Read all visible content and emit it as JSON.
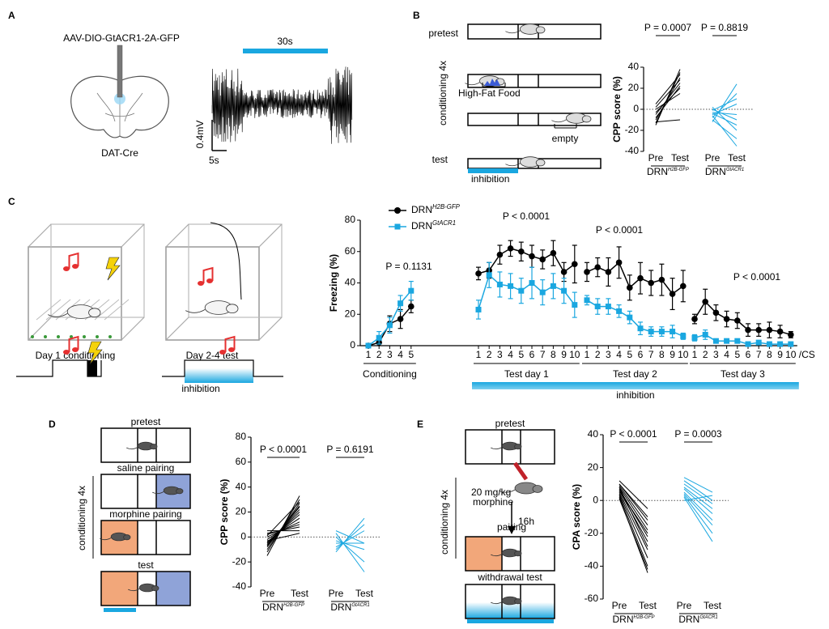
{
  "panels": {
    "labels": [
      "A",
      "B",
      "C",
      "D",
      "E"
    ],
    "A": {
      "virus": "AAV-DIO-GtACR1-2A-GFP",
      "mouse_line": "DAT-Cre",
      "duration": "30s",
      "scale_v": "0.4mV",
      "scale_t": "5s"
    },
    "B": {
      "pretest": "pretest",
      "conditioning": "conditioning 4x",
      "food": "High-Fat Food",
      "empty": "empty",
      "test": "test",
      "inhibition": "inhibition"
    },
    "C": {
      "day1": "Day 1 conditioning",
      "day2": "Day 2-4 test",
      "inhibition": "inhibition"
    },
    "D": {
      "pretest": "pretest",
      "saline": "saline pairing",
      "morphine": "morphine pairing",
      "conditioning": "conditioning 4x",
      "test": "test"
    },
    "E": {
      "pretest": "pretest",
      "dose": "20 mg/kg",
      "drug": "morphine",
      "delay": "16h",
      "conditioning": "conditioning 4x",
      "pairing": "pairing",
      "test": "withdrawal test"
    }
  },
  "chart_data": [
    {
      "type": "paired",
      "ylabel": "CPP score (%)",
      "ylim": [
        -40,
        40
      ],
      "yticks": [
        -40,
        -20,
        0,
        20,
        40
      ],
      "xlabels": [
        "Pre",
        "Test"
      ],
      "annotations": [
        "P = 0.0007",
        "P = 0.8819"
      ],
      "series": [
        {
          "name": {
            "base": "DRN",
            "sup": "H2B-GFP"
          },
          "color": "#000000",
          "pre": [
            -15,
            -13,
            -10,
            -5,
            -3,
            0,
            2,
            5,
            -12,
            -8
          ],
          "test": [
            38,
            35,
            30,
            25,
            20,
            15,
            28,
            33,
            -10,
            22
          ]
        },
        {
          "name": {
            "base": "DRN",
            "sup": "GtACR1"
          },
          "color": "#1aa7e0",
          "pre": [
            -12,
            -8,
            -5,
            -3,
            0,
            2,
            -10,
            -6,
            -1,
            -4
          ],
          "test": [
            24,
            15,
            5,
            -5,
            -10,
            -20,
            -28,
            -35,
            10,
            -15
          ]
        }
      ]
    },
    {
      "type": "line",
      "ylabel": "Freezing (%)",
      "ylim": [
        0,
        80
      ],
      "yticks": [
        0,
        20,
        40,
        60,
        80
      ],
      "xunit": "/CS",
      "inhibition_label": "inhibition",
      "sections": [
        {
          "label": "Conditioning",
          "categories": [
            1,
            2,
            3,
            4,
            5
          ]
        },
        {
          "label": "Test day 1",
          "categories": [
            1,
            2,
            3,
            4,
            5,
            6,
            7,
            8,
            9,
            10
          ]
        },
        {
          "label": "Test day 2",
          "categories": [
            1,
            2,
            3,
            4,
            5,
            6,
            7,
            8,
            9,
            10
          ]
        },
        {
          "label": "Test day 3",
          "categories": [
            1,
            2,
            3,
            4,
            5,
            6,
            7,
            8,
            9,
            10
          ]
        }
      ],
      "annotations": [
        "P = 0.1131",
        "P < 0.0001",
        "P < 0.0001",
        "P < 0.0001"
      ],
      "series": [
        {
          "name": {
            "base": "DRN",
            "sup": "H2B-GFP"
          },
          "color": "#000000",
          "marker": "circle",
          "values": [
            [
              0,
              2,
              14,
              17,
              25
            ],
            [
              46,
              48,
              58,
              62,
              60,
              57,
              55,
              59,
              47,
              52
            ],
            [
              47,
              50,
              47,
              53,
              37,
              43,
              40,
              42,
              33,
              38
            ],
            [
              17,
              28,
              21,
              17,
              16,
              10,
              10,
              10,
              9,
              7
            ]
          ],
          "errors": [
            [
              0,
              1,
              5,
              6,
              4
            ],
            [
              4,
              5,
              6,
              5,
              6,
              7,
              6,
              8,
              6,
              12
            ],
            [
              6,
              6,
              9,
              10,
              8,
              10,
              8,
              10,
              10,
              10
            ],
            [
              3,
              8,
              5,
              5,
              5,
              4,
              4,
              5,
              4,
              2
            ]
          ]
        },
        {
          "name": {
            "base": "DRN",
            "sup": "GtACR1"
          },
          "color": "#1aa7e0",
          "marker": "square",
          "values": [
            [
              0,
              5,
              13,
              27,
              35
            ],
            [
              23,
              45,
              39,
              38,
              35,
              40,
              34,
              38,
              35,
              26
            ],
            [
              29,
              25,
              25,
              22,
              18,
              11,
              9,
              9,
              9,
              6
            ],
            [
              5,
              7,
              3,
              3,
              3,
              1,
              2,
              1,
              1,
              1
            ]
          ],
          "errors": [
            [
              0,
              4,
              5,
              5,
              6
            ],
            [
              6,
              8,
              8,
              8,
              8,
              10,
              8,
              8,
              8,
              8
            ],
            [
              3,
              5,
              5,
              4,
              4,
              4,
              3,
              3,
              4,
              2
            ],
            [
              2,
              3,
              1,
              1,
              1,
              1,
              1,
              1,
              1,
              1
            ]
          ]
        }
      ]
    },
    {
      "type": "paired",
      "ylabel": "CPP score (%)",
      "ylim": [
        -40,
        80
      ],
      "yticks": [
        -40,
        -20,
        0,
        20,
        40,
        60,
        80
      ],
      "xlabels": [
        "Pre",
        "Test"
      ],
      "annotations": [
        "P < 0.0001",
        "P = 0.6191"
      ],
      "series": [
        {
          "name": {
            "base": "DRN",
            "sup": "H2B-GFP"
          },
          "color": "#000000",
          "pre": [
            -15,
            -12,
            -10,
            -8,
            -6,
            -5,
            -4,
            -2,
            0,
            2,
            3,
            5,
            -3,
            -7,
            1
          ],
          "test": [
            33,
            30,
            27,
            25,
            22,
            20,
            18,
            15,
            12,
            10,
            8,
            5,
            3,
            24,
            28
          ]
        },
        {
          "name": {
            "base": "DRN",
            "sup": "GtACR1"
          },
          "color": "#1aa7e0",
          "pre": [
            -12,
            -10,
            -8,
            -5,
            -3,
            0,
            3,
            5
          ],
          "test": [
            15,
            10,
            5,
            -5,
            -10,
            -20,
            -28,
            -5
          ]
        }
      ]
    },
    {
      "type": "paired",
      "ylabel": "CPA score (%)",
      "ylim": [
        -60,
        40
      ],
      "yticks": [
        -60,
        -40,
        -20,
        0,
        20,
        40
      ],
      "xlabels": [
        "Pre",
        "Test"
      ],
      "annotations": [
        "P < 0.0001",
        "P = 0.0003"
      ],
      "series": [
        {
          "name": {
            "base": "DRN",
            "sup": "H2B-GFP"
          },
          "color": "#000000",
          "pre": [
            12,
            10,
            9,
            8,
            7,
            6,
            5,
            4,
            3,
            2,
            1,
            10,
            8,
            6
          ],
          "test": [
            -5,
            -10,
            -15,
            -18,
            -22,
            -25,
            -30,
            -35,
            -40,
            -44,
            -42,
            -12,
            -28,
            -20
          ]
        },
        {
          "name": {
            "base": "DRN",
            "sup": "GtACR1"
          },
          "color": "#1aa7e0",
          "pre": [
            14,
            12,
            10,
            8,
            7,
            5,
            4,
            3,
            2,
            0
          ],
          "test": [
            5,
            0,
            -2,
            -5,
            -8,
            -12,
            -15,
            -20,
            -25,
            3
          ]
        }
      ]
    }
  ]
}
